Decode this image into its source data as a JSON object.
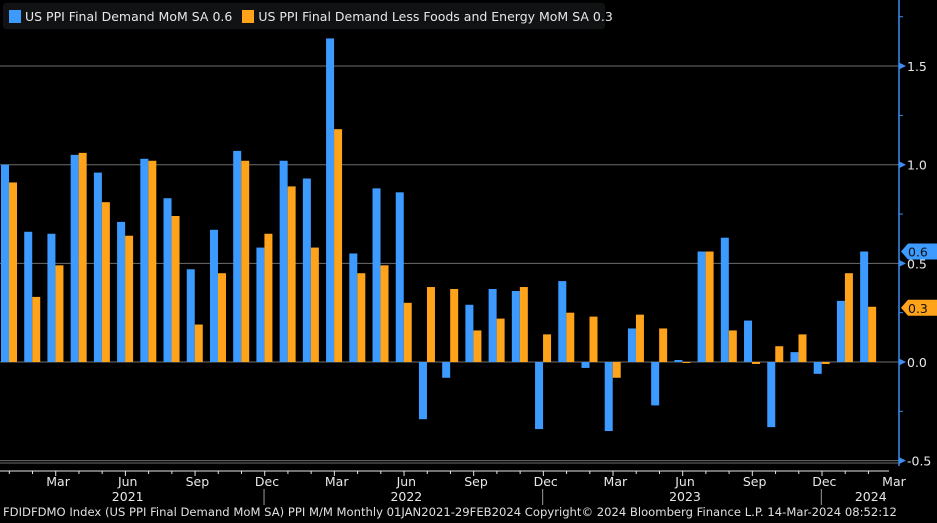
{
  "chart_data": {
    "type": "bar",
    "title": "",
    "xlabel": "",
    "ylabel": "",
    "ylim": [
      -0.55,
      1.75
    ],
    "yticks": [
      -0.5,
      0.0,
      0.5,
      1.0,
      1.5
    ],
    "ytick_labels": [
      "-0.5",
      "0.0",
      "0.5",
      "1.0",
      "1.5"
    ],
    "grid": true,
    "legend_position": "top-left",
    "categories": [
      "Jan 2021",
      "Feb 2021",
      "Mar 2021",
      "Apr 2021",
      "May 2021",
      "Jun 2021",
      "Jul 2021",
      "Aug 2021",
      "Sep 2021",
      "Oct 2021",
      "Nov 2021",
      "Dec 2021",
      "Jan 2022",
      "Feb 2022",
      "Mar 2022",
      "Apr 2022",
      "May 2022",
      "Jun 2022",
      "Jul 2022",
      "Aug 2022",
      "Sep 2022",
      "Oct 2022",
      "Nov 2022",
      "Dec 2022",
      "Jan 2023",
      "Feb 2023",
      "Mar 2023",
      "Apr 2023",
      "May 2023",
      "Jun 2023",
      "Jul 2023",
      "Aug 2023",
      "Sep 2023",
      "Oct 2023",
      "Nov 2023",
      "Dec 2023",
      "Jan 2024",
      "Feb 2024"
    ],
    "xtick_labels": [
      {
        "label": "Mar",
        "index": 2
      },
      {
        "label": "Jun",
        "index": 5
      },
      {
        "label": "Sep",
        "index": 8
      },
      {
        "label": "Dec",
        "index": 11
      },
      {
        "label": "Mar",
        "index": 14
      },
      {
        "label": "Jun",
        "index": 17
      },
      {
        "label": "Sep",
        "index": 20
      },
      {
        "label": "Dec",
        "index": 23
      },
      {
        "label": "Mar",
        "index": 26
      },
      {
        "label": "Jun",
        "index": 29
      },
      {
        "label": "Sep",
        "index": 32
      },
      {
        "label": "Dec",
        "index": 35
      },
      {
        "label": "Mar",
        "index": 38
      }
    ],
    "year_labels": [
      {
        "label": "2021",
        "index": 5
      },
      {
        "label": "2022",
        "index": 17
      },
      {
        "label": "2023",
        "index": 29
      },
      {
        "label": "2024",
        "index": 37
      }
    ],
    "year_separators": [
      11,
      23,
      35
    ],
    "series": [
      {
        "name": "US PPI Final Demand MoM SA",
        "last_value_label": "0.6",
        "color": "#3d9bff",
        "values": [
          1.0,
          0.66,
          0.65,
          1.05,
          0.96,
          0.71,
          1.03,
          0.83,
          0.47,
          0.67,
          1.07,
          0.58,
          1.02,
          0.93,
          1.64,
          0.55,
          0.88,
          0.86,
          -0.29,
          -0.08,
          0.29,
          0.37,
          0.36,
          -0.34,
          0.41,
          -0.03,
          -0.35,
          0.17,
          -0.22,
          0.01,
          0.56,
          0.63,
          0.21,
          -0.33,
          0.05,
          -0.06,
          0.31,
          0.56
        ]
      },
      {
        "name": "US PPI Final Demand Less Foods and Energy MoM SA",
        "last_value_label": "0.3",
        "color": "#ffa31a",
        "values": [
          0.91,
          0.33,
          0.49,
          1.06,
          0.81,
          0.64,
          1.02,
          0.74,
          0.19,
          0.45,
          1.02,
          0.65,
          0.89,
          0.58,
          1.18,
          0.45,
          0.49,
          0.3,
          0.38,
          0.37,
          0.16,
          0.22,
          0.38,
          0.14,
          0.25,
          0.23,
          -0.08,
          0.24,
          0.17,
          -0.005,
          0.56,
          0.16,
          -0.01,
          0.08,
          0.14,
          -0.01,
          0.45,
          0.28
        ]
      }
    ]
  },
  "legend": {
    "items": [
      {
        "label": "US PPI Final Demand MoM SA 0.6",
        "color": "#3d9bff"
      },
      {
        "label": "US PPI Final Demand Less Foods and Energy MoM SA 0.3",
        "color": "#ffa31a"
      }
    ]
  },
  "footer": {
    "text": "FDIDFDMO Index (US PPI Final Demand MoM SA) PPI M/M  Monthly 01JAN2021-29FEB2024  Copyright© 2024 Bloomberg Finance L.P.  14-Mar-2024 08:52:12"
  }
}
